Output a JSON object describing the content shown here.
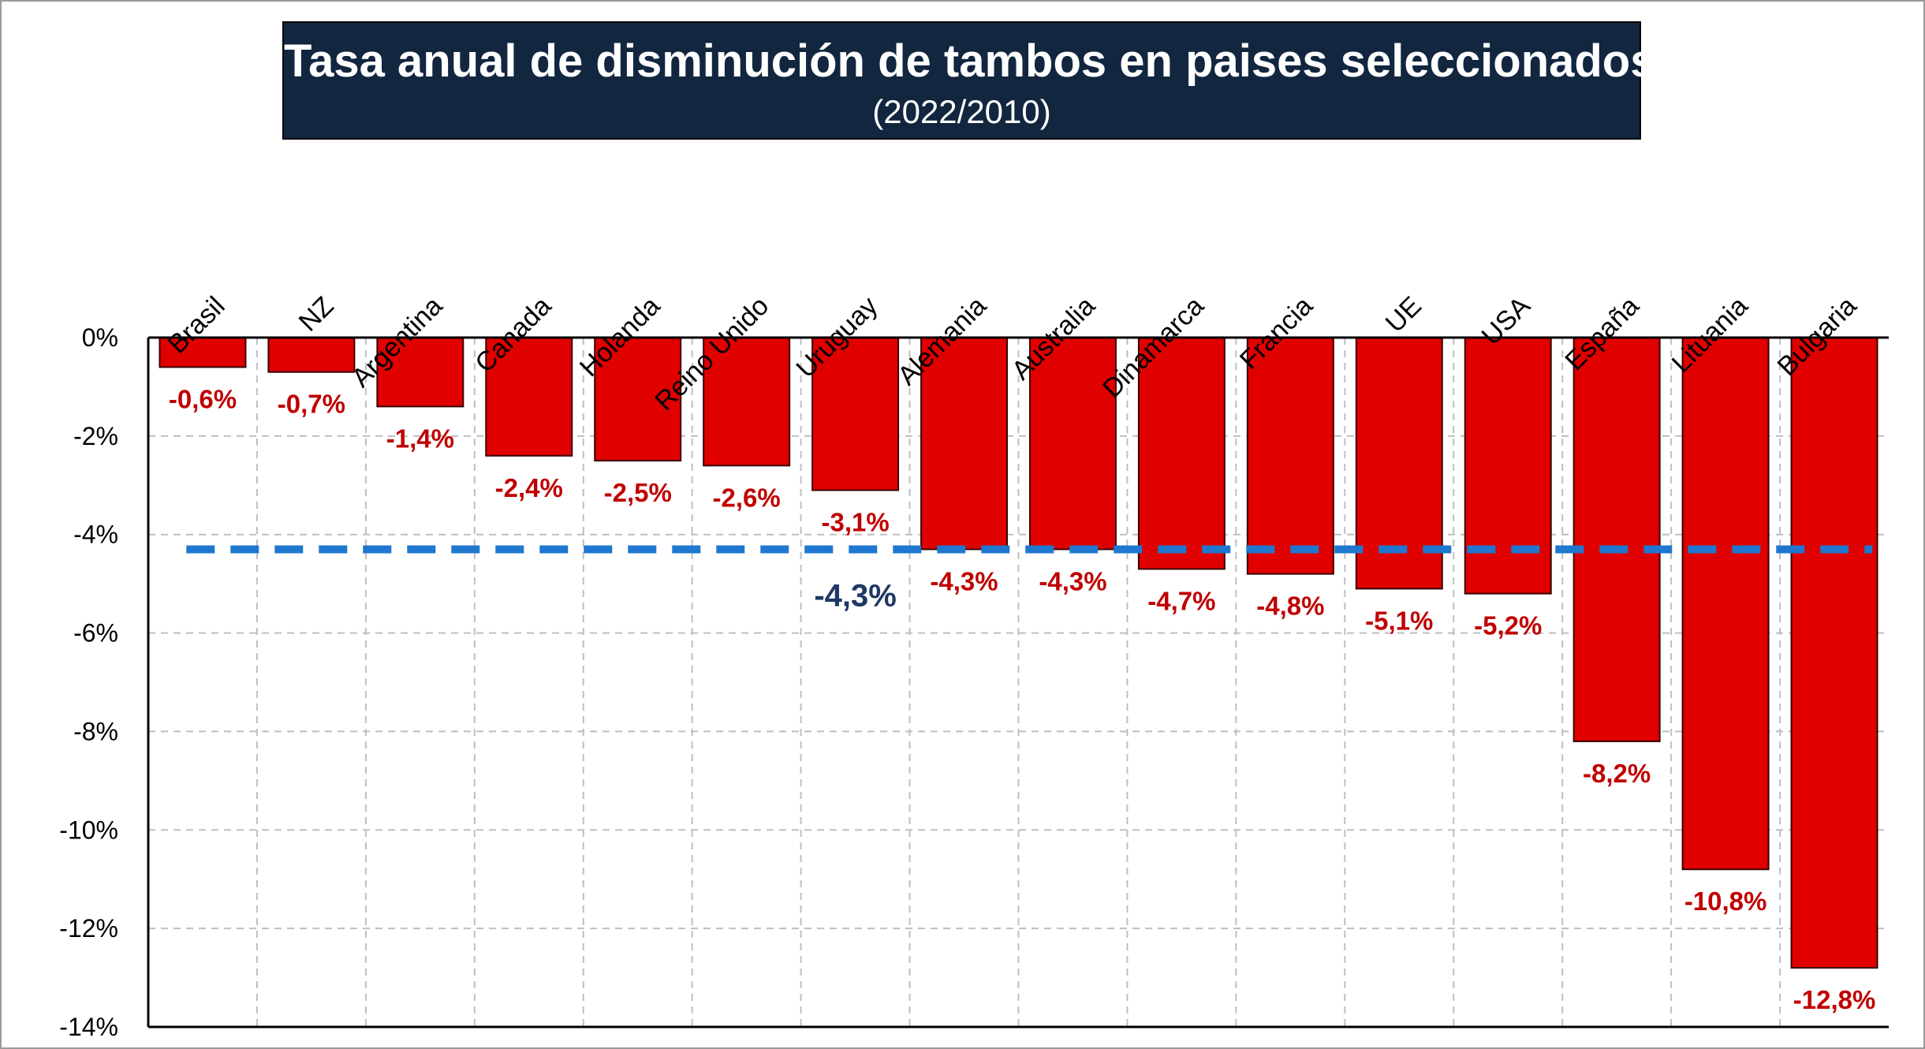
{
  "chart_data": {
    "type": "bar",
    "title": "Tasa anual de disminución de tambos en paises seleccionados",
    "subtitle": "(2022/2010)",
    "categories": [
      "Brasil",
      "NZ",
      "Argentina",
      "Canada",
      "Holanda",
      "Reino Unido",
      "Uruguay",
      "Alemania",
      "Australia",
      "Dinamarca",
      "Francia",
      "UE",
      "USA",
      "España",
      "Lituania",
      "Bulgaria"
    ],
    "values": [
      -0.6,
      -0.7,
      -1.4,
      -2.4,
      -2.5,
      -2.6,
      -3.1,
      -4.3,
      -4.3,
      -4.7,
      -4.8,
      -5.1,
      -5.2,
      -8.2,
      -10.8,
      -12.8
    ],
    "value_labels": [
      "-0,6%",
      "-0,7%",
      "-1,4%",
      "-2,4%",
      "-2,5%",
      "-2,6%",
      "-3,1%",
      "-4,3%",
      "-4,3%",
      "-4,7%",
      "-4,8%",
      "-5,1%",
      "-5,2%",
      "-8,2%",
      "-10,8%",
      "-12,8%"
    ],
    "ylim": [
      -14,
      0
    ],
    "yticks": [
      0,
      -2,
      -4,
      -6,
      -8,
      -10,
      -12,
      -14
    ],
    "ytick_labels": [
      "0%",
      "-2%",
      "-4%",
      "-6%",
      "-8%",
      "-10%",
      "-12%",
      "-14%"
    ],
    "xaxis_position": "top",
    "grid": true,
    "reference_line": {
      "value": -4.3,
      "label": "-4,3%",
      "style": "dashed"
    },
    "colors": {
      "bar": "#e00000",
      "bar_border": "#3a0000",
      "value_label": "#c00000",
      "reference_line": "#1f77d0",
      "reference_label": "#1f3864",
      "grid": "#bfbfbf",
      "title_bg": "#12263f"
    }
  }
}
